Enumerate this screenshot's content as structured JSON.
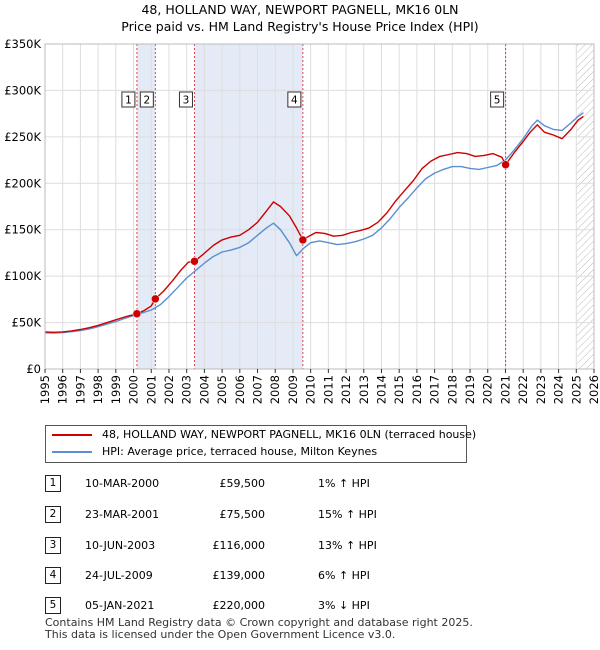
{
  "title_line1": "48, HOLLAND WAY, NEWPORT PAGNELL, MK16 0LN",
  "title_line2": "Price paid vs. HM Land Registry's House Price Index (HPI)",
  "chart_data": {
    "type": "line",
    "xlim": [
      1995,
      2026
    ],
    "ylim": [
      0,
      350000
    ],
    "y_ticks": [
      {
        "value": 0,
        "label": "£0"
      },
      {
        "value": 50000,
        "label": "£50K"
      },
      {
        "value": 100000,
        "label": "£100K"
      },
      {
        "value": 150000,
        "label": "£150K"
      },
      {
        "value": 200000,
        "label": "£200K"
      },
      {
        "value": 250000,
        "label": "£250K"
      },
      {
        "value": 300000,
        "label": "£300K"
      },
      {
        "value": 350000,
        "label": "£350K"
      }
    ],
    "x_ticks": [
      "1995",
      "1996",
      "1997",
      "1998",
      "1999",
      "2000",
      "2001",
      "2002",
      "2003",
      "2004",
      "2005",
      "2006",
      "2007",
      "2008",
      "2009",
      "2010",
      "2011",
      "2012",
      "2013",
      "2014",
      "2015",
      "2016",
      "2017",
      "2018",
      "2019",
      "2020",
      "2021",
      "2022",
      "2023",
      "2024",
      "2025",
      "2026"
    ],
    "grid": true,
    "hatched_from": 2025.0,
    "shaded_spans": [
      [
        2000.19,
        2001.23
      ],
      [
        2003.44,
        2009.56
      ]
    ],
    "series": [
      {
        "name": "48, HOLLAND WAY, NEWPORT PAGNELL, MK16 0LN (terraced house)",
        "color": "#cc0000",
        "points": [
          [
            1995.0,
            40000
          ],
          [
            1995.5,
            39500
          ],
          [
            1996.0,
            40000
          ],
          [
            1996.5,
            41000
          ],
          [
            1997.0,
            42500
          ],
          [
            1997.5,
            44500
          ],
          [
            1998.0,
            47000
          ],
          [
            1998.5,
            50000
          ],
          [
            1999.0,
            53000
          ],
          [
            1999.5,
            56000
          ],
          [
            2000.19,
            59500
          ],
          [
            2000.6,
            63000
          ],
          [
            2001.0,
            68000
          ],
          [
            2001.23,
            75500
          ],
          [
            2001.7,
            84000
          ],
          [
            2002.2,
            95000
          ],
          [
            2002.7,
            107000
          ],
          [
            2003.1,
            115000
          ],
          [
            2003.44,
            116000
          ],
          [
            2003.9,
            123000
          ],
          [
            2004.5,
            133000
          ],
          [
            2005.0,
            139000
          ],
          [
            2005.5,
            142000
          ],
          [
            2006.0,
            144000
          ],
          [
            2006.5,
            150000
          ],
          [
            2007.0,
            158000
          ],
          [
            2007.5,
            170000
          ],
          [
            2007.9,
            180000
          ],
          [
            2008.3,
            175000
          ],
          [
            2008.8,
            165000
          ],
          [
            2009.2,
            152000
          ],
          [
            2009.56,
            139000
          ],
          [
            2009.9,
            143000
          ],
          [
            2010.3,
            147000
          ],
          [
            2010.8,
            146000
          ],
          [
            2011.3,
            143000
          ],
          [
            2011.8,
            144000
          ],
          [
            2012.3,
            147000
          ],
          [
            2012.8,
            149000
          ],
          [
            2013.3,
            152000
          ],
          [
            2013.8,
            158000
          ],
          [
            2014.3,
            168000
          ],
          [
            2014.8,
            181000
          ],
          [
            2015.3,
            192000
          ],
          [
            2015.8,
            203000
          ],
          [
            2016.3,
            216000
          ],
          [
            2016.8,
            224000
          ],
          [
            2017.3,
            229000
          ],
          [
            2017.8,
            231000
          ],
          [
            2018.3,
            233000
          ],
          [
            2018.8,
            232000
          ],
          [
            2019.3,
            229000
          ],
          [
            2019.8,
            230000
          ],
          [
            2020.3,
            232000
          ],
          [
            2020.8,
            228000
          ],
          [
            2021.01,
            220000
          ],
          [
            2021.5,
            233000
          ],
          [
            2022.0,
            245000
          ],
          [
            2022.4,
            255000
          ],
          [
            2022.8,
            263000
          ],
          [
            2023.2,
            255000
          ],
          [
            2023.7,
            252000
          ],
          [
            2024.2,
            248000
          ],
          [
            2024.7,
            258000
          ],
          [
            2025.1,
            268000
          ],
          [
            2025.4,
            272000
          ]
        ]
      },
      {
        "name": "HPI: Average price, terraced house, Milton Keynes",
        "color": "#5b8fd0",
        "points": [
          [
            1995.0,
            39000
          ],
          [
            1995.5,
            38800
          ],
          [
            1996.0,
            39300
          ],
          [
            1996.5,
            40200
          ],
          [
            1997.0,
            41500
          ],
          [
            1997.5,
            43200
          ],
          [
            1998.0,
            45600
          ],
          [
            1998.5,
            48300
          ],
          [
            1999.0,
            51000
          ],
          [
            1999.5,
            54500
          ],
          [
            2000.0,
            57500
          ],
          [
            2000.5,
            60500
          ],
          [
            2001.0,
            63500
          ],
          [
            2001.5,
            69000
          ],
          [
            2002.0,
            78000
          ],
          [
            2002.5,
            88000
          ],
          [
            2003.0,
            98000
          ],
          [
            2003.5,
            106000
          ],
          [
            2004.0,
            114000
          ],
          [
            2004.5,
            121000
          ],
          [
            2005.0,
            126000
          ],
          [
            2005.5,
            128000
          ],
          [
            2006.0,
            131000
          ],
          [
            2006.5,
            136000
          ],
          [
            2007.0,
            144000
          ],
          [
            2007.5,
            152000
          ],
          [
            2007.9,
            157000
          ],
          [
            2008.3,
            150000
          ],
          [
            2008.8,
            136000
          ],
          [
            2009.2,
            122000
          ],
          [
            2009.6,
            130000
          ],
          [
            2010.0,
            136000
          ],
          [
            2010.5,
            138000
          ],
          [
            2011.0,
            136000
          ],
          [
            2011.5,
            134000
          ],
          [
            2012.0,
            135000
          ],
          [
            2012.5,
            137000
          ],
          [
            2013.0,
            140000
          ],
          [
            2013.5,
            144000
          ],
          [
            2014.0,
            152000
          ],
          [
            2014.5,
            162000
          ],
          [
            2015.0,
            174000
          ],
          [
            2015.5,
            184000
          ],
          [
            2016.0,
            195000
          ],
          [
            2016.5,
            205000
          ],
          [
            2017.0,
            211000
          ],
          [
            2017.5,
            215000
          ],
          [
            2018.0,
            218000
          ],
          [
            2018.5,
            218000
          ],
          [
            2019.0,
            216000
          ],
          [
            2019.5,
            215000
          ],
          [
            2020.0,
            217000
          ],
          [
            2020.5,
            219000
          ],
          [
            2021.0,
            225000
          ],
          [
            2021.5,
            236000
          ],
          [
            2022.0,
            248000
          ],
          [
            2022.5,
            262000
          ],
          [
            2022.8,
            268000
          ],
          [
            2023.2,
            262000
          ],
          [
            2023.7,
            258000
          ],
          [
            2024.2,
            257000
          ],
          [
            2024.7,
            265000
          ],
          [
            2025.1,
            272000
          ],
          [
            2025.4,
            276000
          ]
        ]
      }
    ],
    "sales": [
      {
        "id": "1",
        "x": 2000.19,
        "price": 59500
      },
      {
        "id": "2",
        "x": 2001.23,
        "price": 75500
      },
      {
        "id": "3",
        "x": 2003.44,
        "price": 116000
      },
      {
        "id": "4",
        "x": 2009.56,
        "price": 139000
      },
      {
        "id": "5",
        "x": 2021.01,
        "price": 220000
      }
    ]
  },
  "legend": {
    "property_label": "48, HOLLAND WAY, NEWPORT PAGNELL, MK16 0LN (terraced house)",
    "hpi_label": "HPI: Average price, terraced house, Milton Keynes"
  },
  "sales_table": [
    {
      "id": "1",
      "date": "10-MAR-2000",
      "price": "£59,500",
      "hpi": "1% ↑ HPI"
    },
    {
      "id": "2",
      "date": "23-MAR-2001",
      "price": "£75,500",
      "hpi": "15% ↑ HPI"
    },
    {
      "id": "3",
      "date": "10-JUN-2003",
      "price": "£116,000",
      "hpi": "13% ↑ HPI"
    },
    {
      "id": "4",
      "date": "24-JUL-2009",
      "price": "£139,000",
      "hpi": "6% ↑ HPI"
    },
    {
      "id": "5",
      "date": "05-JAN-2021",
      "price": "£220,000",
      "hpi": "3% ↓ HPI"
    }
  ],
  "footer": {
    "line1": "Contains HM Land Registry data © Crown copyright and database right 2025.",
    "line2": "This data is licensed under the Open Government Licence v3.0."
  }
}
